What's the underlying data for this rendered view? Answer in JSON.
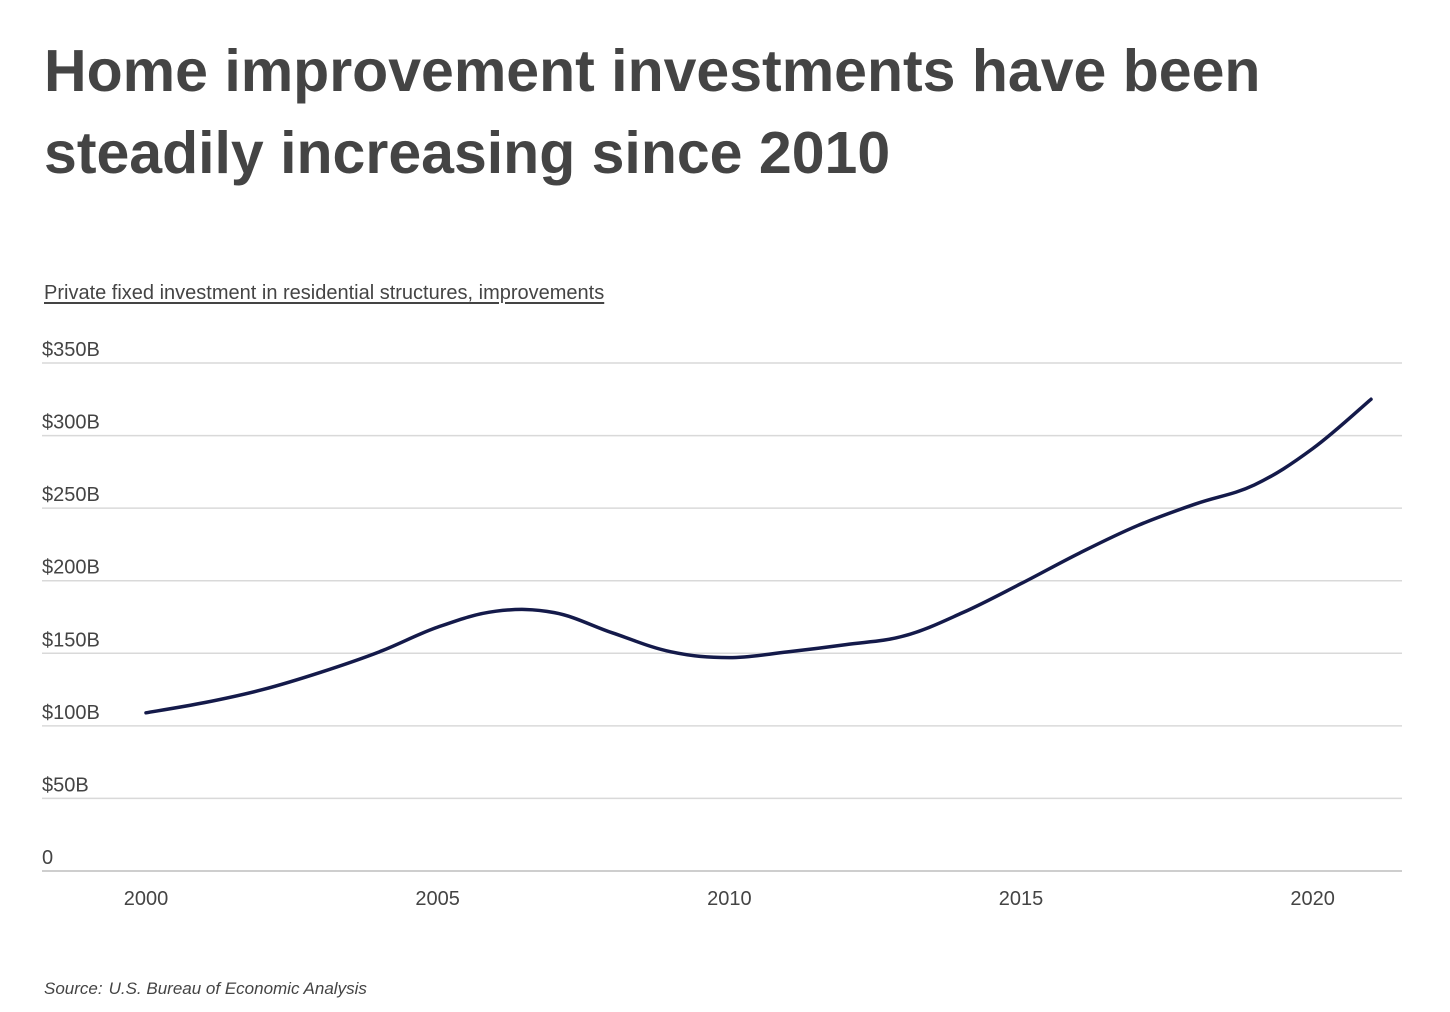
{
  "title": "Home improvement investments have been steadily increasing since 2010",
  "subtitle": "Private fixed investment in residential structures, improvements",
  "source": {
    "label": "Source:",
    "text": "U.S. Bureau of Economic Analysis"
  },
  "colors": {
    "line": "#141a4a",
    "grid": "#d9d9d9",
    "text": "#444444"
  },
  "chart_data": {
    "type": "line",
    "title": "Private fixed investment in residential structures, improvements",
    "xlabel": "",
    "ylabel": "",
    "x": [
      2000,
      2001,
      2002,
      2003,
      2004,
      2005,
      2006,
      2007,
      2008,
      2009,
      2010,
      2011,
      2012,
      2013,
      2014,
      2015,
      2016,
      2017,
      2018,
      2019,
      2020,
      2021
    ],
    "series": [
      {
        "values": [
          109,
          116,
          125,
          137,
          151,
          168,
          179,
          178,
          164,
          151,
          147,
          151,
          156,
          162,
          178,
          198,
          219,
          238,
          253,
          266,
          291,
          325
        ]
      }
    ],
    "xlim": [
      1998.3,
      2021.6
    ],
    "ylim": [
      0,
      350
    ],
    "x_ticks": [
      2000,
      2005,
      2010,
      2015,
      2020
    ],
    "x_tick_labels": [
      "2000",
      "2005",
      "2010",
      "2015",
      "2020"
    ],
    "y_ticks": [
      0,
      50,
      100,
      150,
      200,
      250,
      300,
      350
    ],
    "y_tick_labels": [
      "0",
      "$50B",
      "$100B",
      "$150B",
      "$200B",
      "$250B",
      "$300B",
      "$350B"
    ],
    "grid": "horizontal",
    "legend": "none"
  }
}
